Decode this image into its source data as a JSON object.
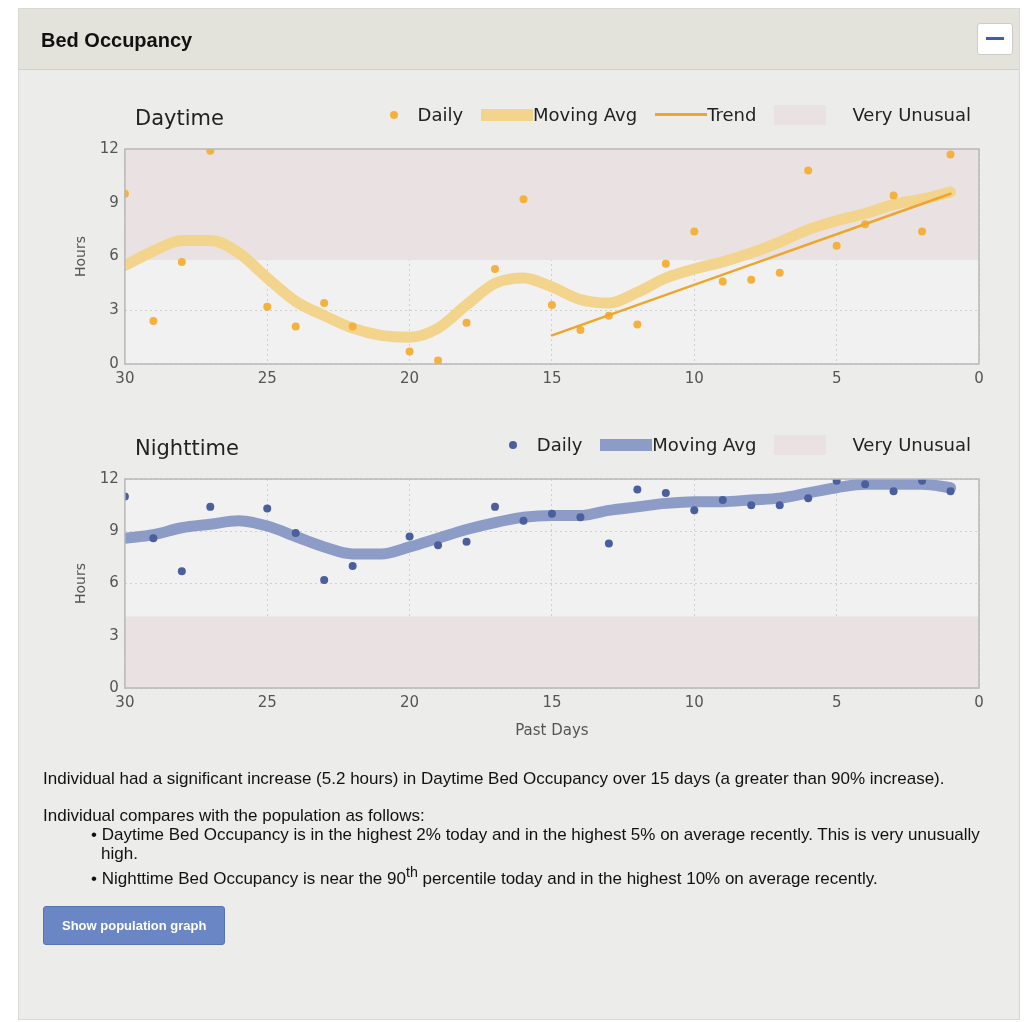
{
  "chart_data": [
    {
      "type": "other",
      "title": "Bed Occupancy"
    },
    {
      "type": "line",
      "title": "Daytime",
      "ylabel": "Hours",
      "x": [
        30,
        29,
        28,
        27,
        26,
        25,
        24,
        23,
        22,
        21,
        20,
        19,
        18,
        17,
        16,
        15,
        14,
        13,
        12,
        11,
        10,
        9,
        8,
        7,
        6,
        5,
        4,
        3,
        2,
        1
      ],
      "xlim": [
        30,
        0
      ],
      "xticks": [
        30,
        25,
        20,
        15,
        10,
        5,
        0
      ],
      "ylim": [
        0,
        12
      ],
      "yticks": [
        0,
        3,
        6,
        9,
        12
      ],
      "grid": true,
      "legend": "top right",
      "series": [
        {
          "name": "Daily",
          "type": "scatter",
          "marker": "circle",
          "color": "#f5b13d",
          "values": [
            9.5,
            2.4,
            5.7,
            11.9,
            null,
            3.2,
            2.1,
            3.4,
            2.1,
            null,
            0.7,
            0.2,
            2.3,
            5.3,
            9.2,
            3.3,
            1.9,
            2.7,
            2.2,
            5.6,
            7.4,
            4.6,
            4.7,
            5.1,
            10.8,
            6.6,
            7.8,
            9.4,
            7.4,
            11.7
          ]
        },
        {
          "name": "Moving Avg",
          "type": "line",
          "marker": "none",
          "color": "#f3d48c",
          "values": [
            5.5,
            6.3,
            6.9,
            6.9,
            6.2,
            4.8,
            3.5,
            2.7,
            2.0,
            1.6,
            1.5,
            2.0,
            3.3,
            4.5,
            4.8,
            4.3,
            3.6,
            3.4,
            4.0,
            4.8,
            5.3,
            5.7,
            6.2,
            6.8,
            7.5,
            8.0,
            8.4,
            8.9,
            9.2,
            9.6
          ]
        },
        {
          "name": "Trend",
          "type": "line",
          "marker": "none",
          "color": "#f0a52a",
          "x": [
            15,
            1
          ],
          "values": [
            1.6,
            9.5
          ]
        }
      ],
      "bands": [
        {
          "axis": "y",
          "from": 5.8,
          "to": 12,
          "label": "Very Unusual",
          "color": "#e9e1e2"
        }
      ]
    },
    {
      "type": "line",
      "title": "Nighttime",
      "xlabel": "Past Days",
      "ylabel": "Hours",
      "x": [
        30,
        29,
        28,
        27,
        26,
        25,
        24,
        23,
        22,
        21,
        20,
        19,
        18,
        17,
        16,
        15,
        14,
        13,
        12,
        11,
        10,
        9,
        8,
        7,
        6,
        5,
        4,
        3,
        2,
        1
      ],
      "xlim": [
        30,
        0
      ],
      "xticks": [
        30,
        25,
        20,
        15,
        10,
        5,
        0
      ],
      "ylim": [
        0,
        12
      ],
      "yticks": [
        0,
        3,
        6,
        9,
        12
      ],
      "grid": true,
      "legend": "top right",
      "series": [
        {
          "name": "Daily",
          "type": "scatter",
          "marker": "circle",
          "color": "#4a5f9c",
          "values": [
            11.0,
            8.6,
            6.7,
            10.4,
            null,
            10.3,
            8.9,
            6.2,
            7.0,
            null,
            8.7,
            8.2,
            8.4,
            10.4,
            9.6,
            10.0,
            9.8,
            8.3,
            11.4,
            11.2,
            10.2,
            10.8,
            10.5,
            10.5,
            10.9,
            11.9,
            11.7,
            11.3,
            11.9,
            11.3
          ]
        },
        {
          "name": "Moving Avg",
          "type": "line",
          "marker": "none",
          "color": "#8c9cc6",
          "values": [
            8.6,
            8.8,
            9.2,
            9.4,
            9.6,
            9.3,
            8.7,
            8.1,
            7.7,
            7.7,
            8.1,
            8.6,
            9.1,
            9.5,
            9.8,
            9.9,
            9.9,
            10.2,
            10.4,
            10.6,
            10.7,
            10.7,
            10.8,
            10.9,
            11.2,
            11.5,
            11.7,
            11.7,
            11.7,
            11.5
          ]
        }
      ],
      "bands": [
        {
          "axis": "y",
          "from": 0,
          "to": 4.1,
          "label": "Very Unusual",
          "color": "#e9e1e2"
        }
      ]
    },
    {
      "type": "other",
      "annotations": [
        "Individual had a significant increase (5.2 hours) in Daytime Bed Occupancy over 15 days (a greater than 90% increase).",
        "Individual compares with the population as follows:",
        "• Daytime Bed Occupancy is in the highest 2% today and in the highest 5% on average recently. This is very unusually high.",
        "• Nighttime Bed Occupancy is near the 90$^{th}$ percentile today and in the highest 10% on average recently.",
        "Show population graph"
      ]
    }
  ]
}
